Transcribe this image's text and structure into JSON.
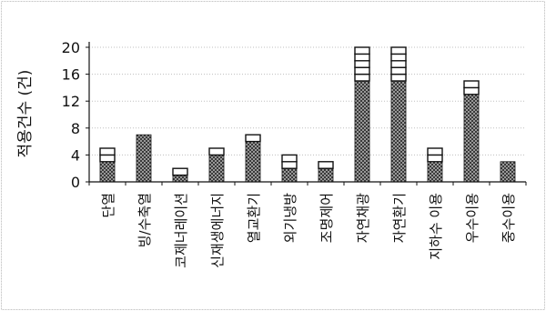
{
  "chart_data": {
    "type": "bar",
    "stacked": true,
    "title": "",
    "xlabel": "",
    "ylabel": "적용건수 (건)",
    "ylim": [
      0,
      20
    ],
    "yticks": [
      "0",
      "4",
      "8",
      "12",
      "16",
      "20"
    ],
    "grid": true,
    "legend": "none",
    "categories": [
      "단열",
      "빙/수축열",
      "코제너레이션",
      "신재생에너지",
      "열교환기",
      "외기냉방",
      "조명제어",
      "자연채광",
      "자연환기",
      "지하수 이용",
      "우수이용",
      "중수이용"
    ],
    "series": [
      {
        "pattern": "dotted",
        "values": [
          3,
          7,
          1,
          4,
          6,
          2,
          2,
          15,
          15,
          3,
          13,
          3
        ]
      },
      {
        "pattern": "striped",
        "values": [
          2,
          0,
          1,
          1,
          1,
          2,
          1,
          5,
          5,
          2,
          2,
          0
        ]
      }
    ],
    "colors": {
      "bar_fill_dark": "#2a2a2a",
      "bar_fill_dot": "#e8e8e8",
      "stripe_fill": "#ffffff",
      "outline": "#111111",
      "grid": "#bfbfbf",
      "frame": "#c8c8c8"
    }
  }
}
